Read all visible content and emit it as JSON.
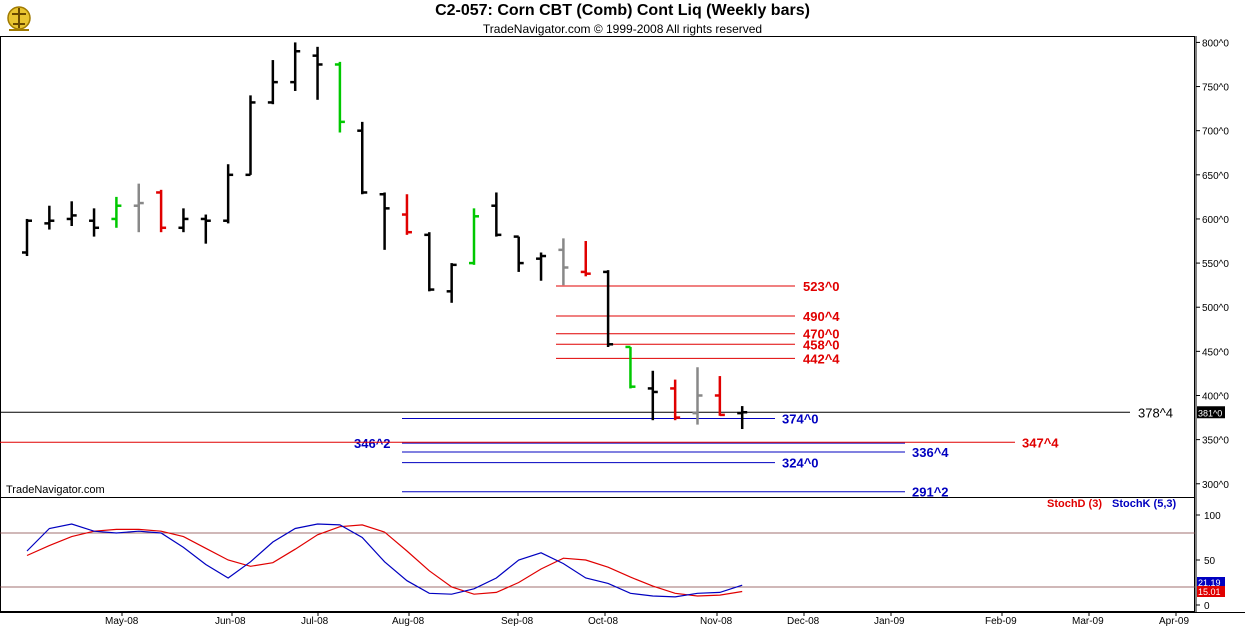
{
  "header": {
    "title": "C2-057:  Corn CBT (Comb) Cont Liq  (Weekly bars)",
    "subtitle": "TradeNavigator.com © 1999-2008 All rights reserved",
    "watermark": "TradeNavigator.com"
  },
  "colors": {
    "up": "#00c800",
    "down": "#e00000",
    "neutral": "#888888",
    "bar": "#000000",
    "blue": "#0000c0",
    "red": "#e00000"
  },
  "chart_data": [
    {
      "type": "ohlc",
      "y_axis": {
        "ylim": [
          285,
          805
        ],
        "ticks": [
          "300^0",
          "350^0",
          "400^0",
          "450^0",
          "500^0",
          "550^0",
          "600^0",
          "650^0",
          "700^0",
          "750^0",
          "800^0"
        ],
        "tick_values": [
          300,
          350,
          400,
          450,
          500,
          550,
          600,
          650,
          700,
          750,
          800
        ]
      },
      "x_axis": {
        "ticks": [
          "May-08",
          "Jun-08",
          "Jul-08",
          "Aug-08",
          "Sep-08",
          "Oct-08",
          "Nov-08",
          "Dec-08",
          "Jan-09",
          "Feb-09",
          "Mar-09",
          "Apr-09"
        ]
      },
      "bars": [
        {
          "o": 562,
          "h": 600,
          "l": 558,
          "c": 598,
          "col": "bar"
        },
        {
          "o": 595,
          "h": 615,
          "l": 588,
          "c": 598,
          "col": "bar"
        },
        {
          "o": 600,
          "h": 620,
          "l": 592,
          "c": 604,
          "col": "bar"
        },
        {
          "o": 598,
          "h": 612,
          "l": 580,
          "c": 590,
          "col": "bar"
        },
        {
          "o": 600,
          "h": 625,
          "l": 590,
          "c": 615,
          "col": "up"
        },
        {
          "o": 615,
          "h": 640,
          "l": 585,
          "c": 618,
          "col": "neutral"
        },
        {
          "o": 630,
          "h": 633,
          "l": 585,
          "c": 590,
          "col": "down"
        },
        {
          "o": 590,
          "h": 612,
          "l": 585,
          "c": 600,
          "col": "bar"
        },
        {
          "o": 600,
          "h": 605,
          "l": 572,
          "c": 598,
          "col": "bar"
        },
        {
          "o": 598,
          "h": 662,
          "l": 595,
          "c": 650,
          "col": "bar"
        },
        {
          "o": 650,
          "h": 740,
          "l": 650,
          "c": 732,
          "col": "bar"
        },
        {
          "o": 732,
          "h": 780,
          "l": 730,
          "c": 755,
          "col": "bar"
        },
        {
          "o": 755,
          "h": 800,
          "l": 745,
          "c": 790,
          "col": "bar"
        },
        {
          "o": 785,
          "h": 795,
          "l": 735,
          "c": 775,
          "col": "bar"
        },
        {
          "o": 775,
          "h": 778,
          "l": 698,
          "c": 710,
          "col": "up"
        },
        {
          "o": 700,
          "h": 710,
          "l": 628,
          "c": 630,
          "col": "bar"
        },
        {
          "o": 628,
          "h": 630,
          "l": 565,
          "c": 612,
          "col": "bar"
        },
        {
          "o": 605,
          "h": 628,
          "l": 582,
          "c": 585,
          "col": "down"
        },
        {
          "o": 582,
          "h": 585,
          "l": 518,
          "c": 520,
          "col": "bar"
        },
        {
          "o": 518,
          "h": 550,
          "l": 505,
          "c": 548,
          "col": "bar"
        },
        {
          "o": 550,
          "h": 612,
          "l": 548,
          "c": 603,
          "col": "up"
        },
        {
          "o": 615,
          "h": 630,
          "l": 580,
          "c": 582,
          "col": "bar"
        },
        {
          "o": 580,
          "h": 580,
          "l": 540,
          "c": 550,
          "col": "bar"
        },
        {
          "o": 555,
          "h": 562,
          "l": 530,
          "c": 558,
          "col": "bar"
        },
        {
          "o": 565,
          "h": 578,
          "l": 525,
          "c": 545,
          "col": "neutral"
        },
        {
          "o": 540,
          "h": 575,
          "l": 535,
          "c": 538,
          "col": "down"
        },
        {
          "o": 540,
          "h": 542,
          "l": 455,
          "c": 458,
          "col": "bar"
        },
        {
          "o": 455,
          "h": 455,
          "l": 408,
          "c": 410,
          "col": "up"
        },
        {
          "o": 408,
          "h": 428,
          "l": 372,
          "c": 404,
          "col": "bar"
        },
        {
          "o": 408,
          "h": 418,
          "l": 372,
          "c": 375,
          "col": "down"
        },
        {
          "o": 380,
          "h": 432,
          "l": 367,
          "c": 400,
          "col": "neutral"
        },
        {
          "o": 400,
          "h": 422,
          "l": 377,
          "c": 378,
          "col": "down"
        },
        {
          "o": 380,
          "h": 388,
          "l": 362,
          "c": 381,
          "col": "bar"
        }
      ],
      "current_price": "378^4",
      "current_badge": "381^0",
      "levels": [
        {
          "label": "523^0",
          "value": 524,
          "color": "red"
        },
        {
          "label": "490^4",
          "value": 490,
          "color": "red"
        },
        {
          "label": "470^0",
          "value": 470,
          "color": "red"
        },
        {
          "label": "458^0",
          "value": 458,
          "color": "red"
        },
        {
          "label": "442^4",
          "value": 442,
          "color": "red"
        },
        {
          "label": "374^0",
          "value": 374,
          "color": "blue"
        },
        {
          "label": "346^2",
          "value": 346,
          "color": "blue"
        },
        {
          "label": "347^4",
          "value": 347,
          "color": "red"
        },
        {
          "label": "336^4",
          "value": 336,
          "color": "blue"
        },
        {
          "label": "324^0",
          "value": 324,
          "color": "blue"
        },
        {
          "label": "291^2",
          "value": 291,
          "color": "blue"
        }
      ]
    },
    {
      "type": "line",
      "title": "",
      "ylim": [
        0,
        110
      ],
      "y_ticks": [
        0,
        50,
        100
      ],
      "series": [
        {
          "name": "StochD (3)",
          "color": "red",
          "values": [
            55,
            66,
            76,
            82,
            84,
            84,
            82,
            76,
            63,
            50,
            43,
            47,
            62,
            78,
            87,
            89,
            81,
            60,
            38,
            20,
            12,
            14,
            25,
            40,
            52,
            50,
            42,
            31,
            21,
            13,
            10,
            11,
            15
          ]
        },
        {
          "name": "StochK (5,3)",
          "color": "blue",
          "values": [
            60,
            85,
            90,
            82,
            80,
            82,
            80,
            64,
            45,
            30,
            48,
            70,
            85,
            90,
            89,
            75,
            48,
            27,
            13,
            12,
            18,
            30,
            50,
            58,
            46,
            30,
            24,
            13,
            10,
            9,
            13,
            14,
            22
          ]
        }
      ],
      "badges": [
        "21.19",
        "15.01"
      ]
    }
  ]
}
